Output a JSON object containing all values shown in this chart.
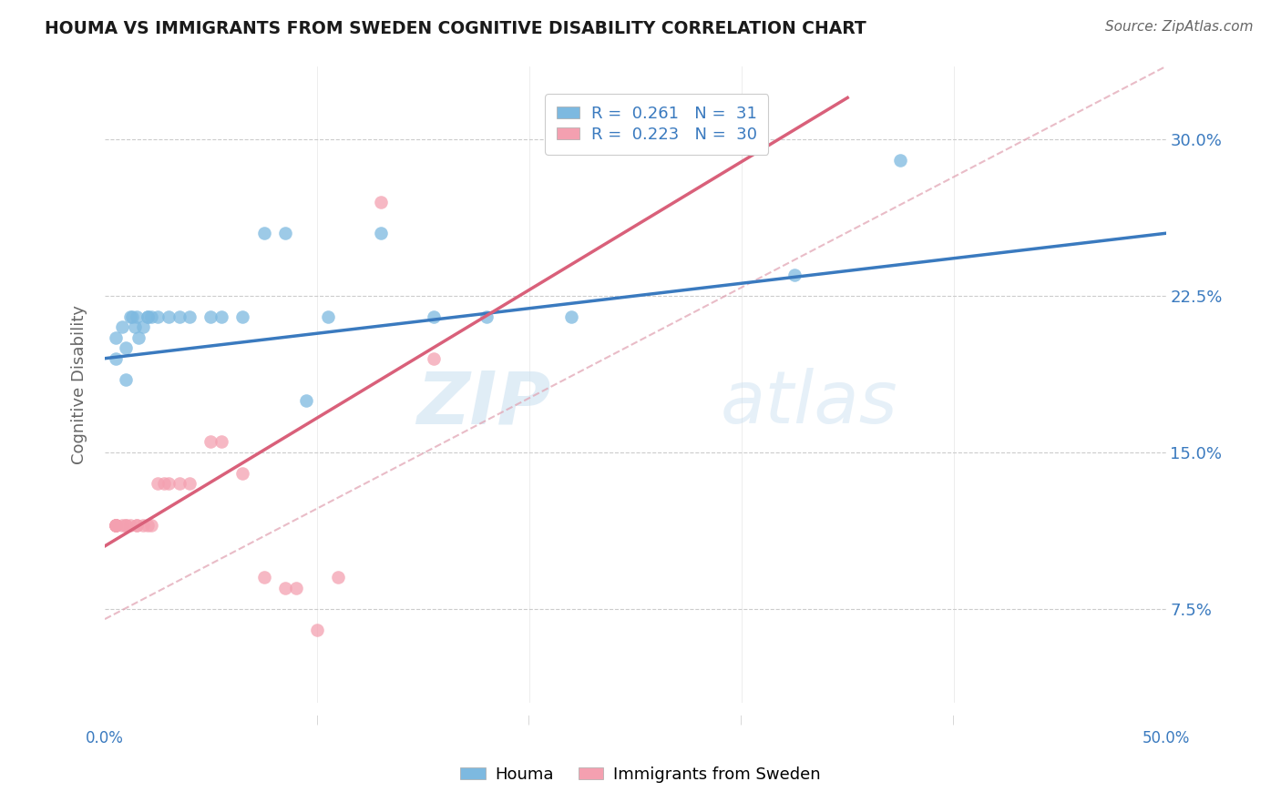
{
  "title": "HOUMA VS IMMIGRANTS FROM SWEDEN COGNITIVE DISABILITY CORRELATION CHART",
  "source": "Source: ZipAtlas.com",
  "ylabel": "Cognitive Disability",
  "yticks": [
    0.075,
    0.15,
    0.225,
    0.3
  ],
  "ytick_labels": [
    "7.5%",
    "15.0%",
    "22.5%",
    "30.0%"
  ],
  "xlim": [
    0.0,
    0.5
  ],
  "ylim": [
    0.03,
    0.335
  ],
  "legend_r1": "R = 0.261",
  "legend_n1": "N =  31",
  "legend_r2": "R = 0.223",
  "legend_n2": "N =  30",
  "houma_color": "#7db9e0",
  "sweden_color": "#f4a0b0",
  "houma_line_color": "#3a7abf",
  "sweden_line_color": "#d9607a",
  "diagonal_color": "#e0a0b0",
  "watermark_zip": "ZIP",
  "watermark_atlas": "atlas",
  "houma_x": [
    0.005,
    0.005,
    0.008,
    0.01,
    0.01,
    0.012,
    0.013,
    0.014,
    0.015,
    0.016,
    0.018,
    0.02,
    0.02,
    0.022,
    0.025,
    0.03,
    0.035,
    0.04,
    0.05,
    0.055,
    0.065,
    0.075,
    0.085,
    0.095,
    0.105,
    0.13,
    0.155,
    0.18,
    0.22,
    0.325,
    0.375
  ],
  "houma_y": [
    0.195,
    0.205,
    0.21,
    0.2,
    0.185,
    0.215,
    0.215,
    0.21,
    0.215,
    0.205,
    0.21,
    0.215,
    0.215,
    0.215,
    0.215,
    0.215,
    0.215,
    0.215,
    0.215,
    0.215,
    0.215,
    0.255,
    0.255,
    0.175,
    0.215,
    0.255,
    0.215,
    0.215,
    0.215,
    0.235,
    0.29
  ],
  "sweden_x": [
    0.005,
    0.005,
    0.005,
    0.005,
    0.005,
    0.005,
    0.008,
    0.01,
    0.01,
    0.012,
    0.015,
    0.015,
    0.018,
    0.02,
    0.022,
    0.025,
    0.028,
    0.03,
    0.035,
    0.04,
    0.05,
    0.055,
    0.065,
    0.075,
    0.085,
    0.09,
    0.1,
    0.11,
    0.13,
    0.155
  ],
  "sweden_y": [
    0.115,
    0.115,
    0.115,
    0.115,
    0.115,
    0.115,
    0.115,
    0.115,
    0.115,
    0.115,
    0.115,
    0.115,
    0.115,
    0.115,
    0.115,
    0.135,
    0.135,
    0.135,
    0.135,
    0.135,
    0.155,
    0.155,
    0.14,
    0.09,
    0.085,
    0.085,
    0.065,
    0.09,
    0.27,
    0.195
  ],
  "houma_line_x0": 0.0,
  "houma_line_y0": 0.195,
  "houma_line_x1": 0.5,
  "houma_line_y1": 0.255,
  "sweden_line_x0": 0.0,
  "sweden_line_y0": 0.105,
  "sweden_line_x1": 0.35,
  "sweden_line_y1": 0.32,
  "grid_color": "#cccccc",
  "background_color": "#ffffff"
}
